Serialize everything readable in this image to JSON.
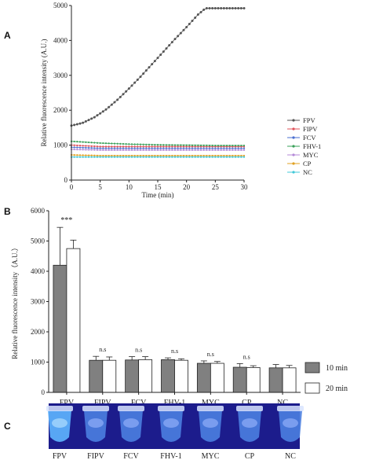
{
  "panels": {
    "a": "A",
    "b": "B",
    "c": "C"
  },
  "chart_data": [
    {
      "type": "line",
      "xlabel": "Time (min)",
      "ylabel": "Relative fluorescence intensity (A.U.)",
      "xlim": [
        0,
        30
      ],
      "ylim": [
        0,
        5000
      ],
      "xticks": [
        0,
        5,
        10,
        15,
        20,
        25,
        30
      ],
      "yticks": [
        0,
        1000,
        2000,
        3000,
        4000,
        5000
      ],
      "legend_position": "right",
      "series": [
        {
          "name": "FPV",
          "color": "#555555",
          "x": [
            0,
            2,
            4,
            6,
            8,
            10,
            12,
            14,
            16,
            18,
            20,
            22,
            23.3,
            24,
            26,
            28,
            30
          ],
          "y": [
            1560,
            1640,
            1800,
            2020,
            2300,
            2620,
            2960,
            3320,
            3680,
            4040,
            4380,
            4740,
            4920,
            4920,
            4920,
            4920,
            4920
          ]
        },
        {
          "name": "FIPV",
          "color": "#e0505a",
          "x": [
            0,
            5,
            10,
            15,
            20,
            25,
            30
          ],
          "y": [
            1000,
            960,
            960,
            960,
            960,
            960,
            960
          ]
        },
        {
          "name": "FCV",
          "color": "#4a6fd0",
          "x": [
            0,
            5,
            10,
            15,
            20,
            25,
            30
          ],
          "y": [
            940,
            910,
            910,
            910,
            910,
            910,
            910
          ]
        },
        {
          "name": "FHV-1",
          "color": "#3aa05a",
          "x": [
            0,
            5,
            10,
            15,
            20,
            25,
            30
          ],
          "y": [
            1110,
            1060,
            1030,
            1010,
            1000,
            990,
            990
          ]
        },
        {
          "name": "MYC",
          "color": "#b48ad8",
          "x": [
            0,
            5,
            10,
            15,
            20,
            25,
            30
          ],
          "y": [
            880,
            860,
            860,
            860,
            860,
            860,
            860
          ]
        },
        {
          "name": "CP",
          "color": "#e0a020",
          "x": [
            0,
            5,
            10,
            15,
            20,
            25,
            30
          ],
          "y": [
            720,
            700,
            700,
            700,
            700,
            700,
            700
          ]
        },
        {
          "name": "NC",
          "color": "#40c8d8",
          "x": [
            0,
            5,
            10,
            15,
            20,
            25,
            30
          ],
          "y": [
            660,
            660,
            660,
            660,
            660,
            660,
            660
          ]
        }
      ]
    },
    {
      "type": "bar",
      "ylabel": "Relative fluorescence intensity（A.U.）",
      "ylim": [
        0,
        6000
      ],
      "yticks": [
        0,
        1000,
        2000,
        3000,
        4000,
        5000,
        6000
      ],
      "legend_position": "right",
      "categories": [
        "FPV",
        "FIPV",
        "FCV",
        "FHV-1",
        "MYC",
        "CP",
        "NC"
      ],
      "annotations": [
        "***",
        "n.s",
        "n.s",
        "n.s",
        "n.s",
        "n.s",
        ""
      ],
      "series": [
        {
          "name": "10 min",
          "color": "#808080",
          "values": [
            4200,
            1060,
            1070,
            1080,
            960,
            830,
            810
          ],
          "errors": [
            1250,
            130,
            110,
            60,
            80,
            120,
            110
          ]
        },
        {
          "name": "20 min",
          "color": "#ffffff",
          "values": [
            4750,
            1060,
            1080,
            1060,
            960,
            820,
            810
          ],
          "errors": [
            280,
            110,
            100,
            50,
            60,
            60,
            80
          ]
        }
      ]
    }
  ],
  "photo": {
    "labels": [
      "FPV",
      "FIPV",
      "FCV",
      "FHV-1",
      "MYC",
      "CP",
      "NC"
    ],
    "background": "#1c1c8c"
  }
}
